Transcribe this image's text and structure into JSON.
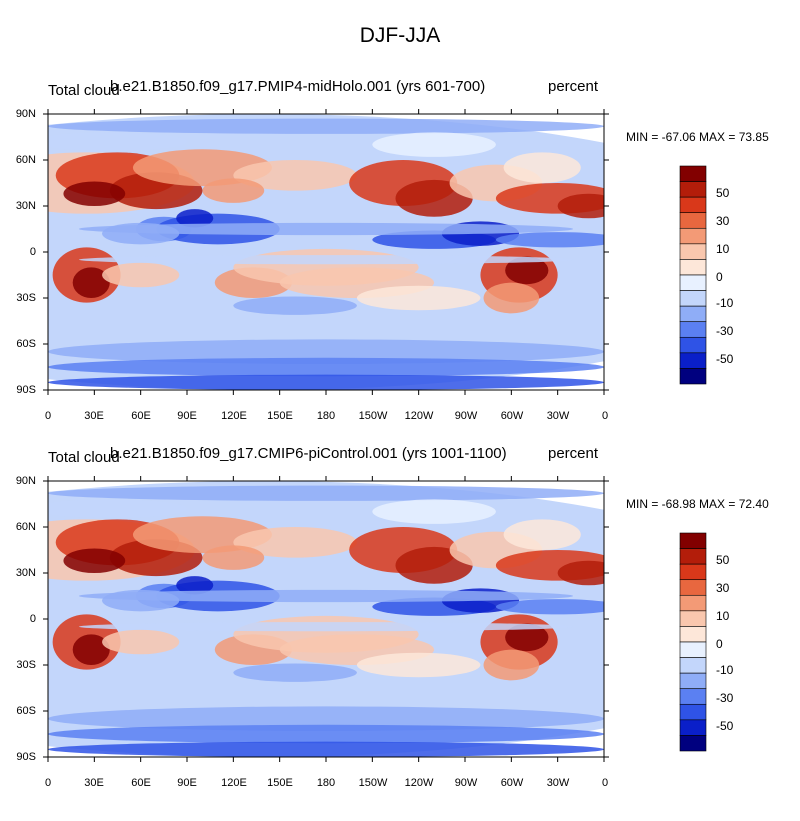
{
  "figure": {
    "title": "DJF-JJA",
    "palette": [
      "#00007f",
      "#0a1fc9",
      "#2f53e6",
      "#5b80f2",
      "#8fadf7",
      "#c3d6fb",
      "#e8f1ff",
      "#fde7d9",
      "#f9c7ae",
      "#f39a76",
      "#e8673f",
      "#d9381a",
      "#b31d0a",
      "#820000"
    ]
  },
  "panels": [
    {
      "left_title": "Total cloud",
      "center_title": "b.e21.B1850.f09_g17.PMIP4-midHolo.001 (yrs 601-700)",
      "right_title": "percent",
      "minmax_text": "MIN = -67.06 MAX =  73.85",
      "y_ticks": [
        "90N",
        "60N",
        "30N",
        "0",
        "30S",
        "60S",
        "90S"
      ],
      "x_ticks": [
        "0",
        "30E",
        "60E",
        "90E",
        "120E",
        "150E",
        "180",
        "150W",
        "120W",
        "90W",
        "60W",
        "30W",
        "0"
      ],
      "colorbar_labels": [
        "50",
        "30",
        "10",
        "0",
        "-10",
        "-30",
        "-50"
      ]
    },
    {
      "left_title": "Total cloud",
      "center_title": "b.e21.B1850.f09_g17.CMIP6-piControl.001 (yrs 1001-1100)",
      "right_title": "percent",
      "minmax_text": "MIN = -68.98 MAX =  72.40",
      "y_ticks": [
        "90N",
        "60N",
        "30N",
        "0",
        "30S",
        "60S",
        "90S"
      ],
      "x_ticks": [
        "0",
        "30E",
        "60E",
        "90E",
        "120E",
        "150E",
        "180",
        "150W",
        "120W",
        "90W",
        "60W",
        "30W",
        "0"
      ],
      "colorbar_labels": [
        "50",
        "30",
        "10",
        "0",
        "-10",
        "-30",
        "-50"
      ]
    }
  ]
}
